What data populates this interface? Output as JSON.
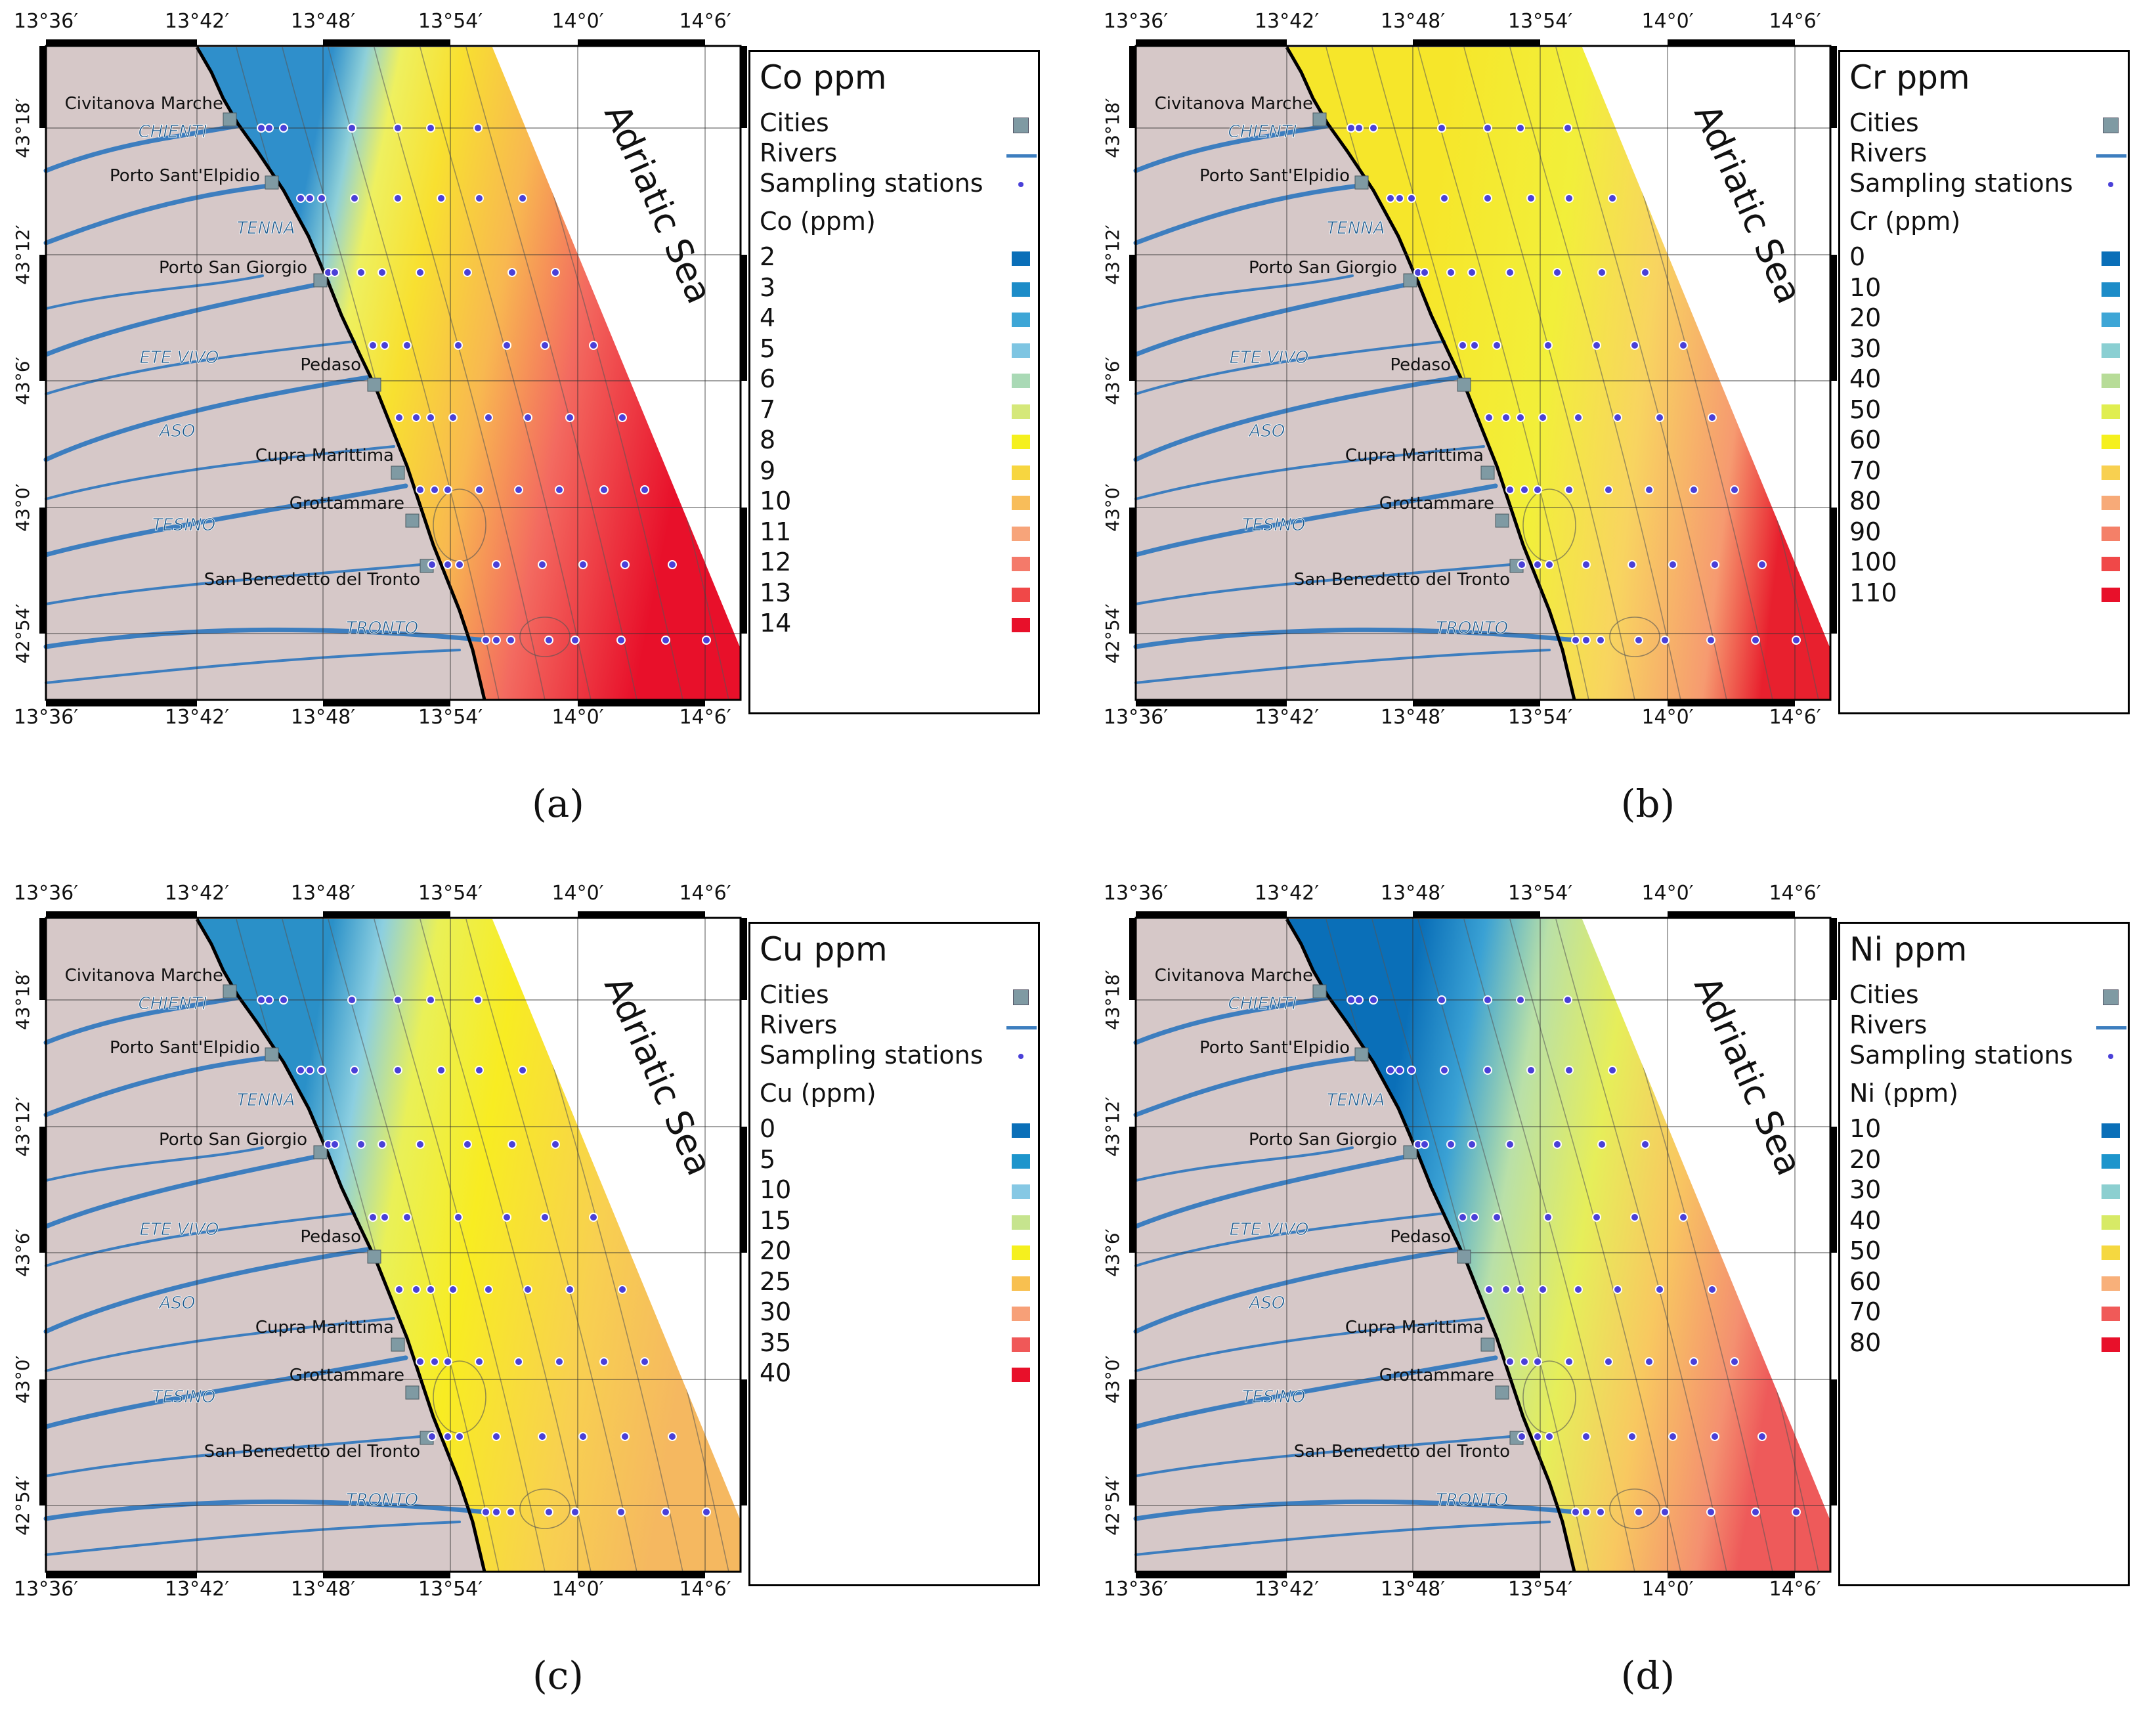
{
  "sea_label": "Adriatic Sea",
  "longitude_ticks": [
    "13°36′",
    "13°42′",
    "13°48′",
    "13°54′",
    "14°0′",
    "14°6′"
  ],
  "latitude_ticks": [
    "43°18′",
    "43°12′",
    "43°6′",
    "43°0′",
    "42°54′"
  ],
  "cities": [
    "Civitanova Marche",
    "Porto Sant'Elpidio",
    "Porto San Giorgio",
    "Pedaso",
    "Cupra Marittima",
    "Grottammare",
    "San Benedetto del Tronto"
  ],
  "rivers": [
    "CHIENTI",
    "TENNA",
    "ETE VIVO",
    "ASO",
    "TESINO",
    "TRONTO"
  ],
  "legend_common": {
    "cities": "Cities",
    "rivers": "Rivers",
    "stations": "Sampling stations"
  },
  "colors": {
    "land": "#d6c8c8",
    "river": "#3d7ebf",
    "city": "#7f9aa3",
    "station": "#4a40d8"
  },
  "panels": [
    {
      "id": "a",
      "caption": "(a)",
      "title": "Co ppm",
      "scale_title": "Co (ppm)",
      "levels": [
        "2",
        "3",
        "4",
        "5",
        "6",
        "7",
        "8",
        "9",
        "10",
        "11",
        "12",
        "13",
        "14"
      ],
      "level_colors": [
        "#0a6fb8",
        "#1d8cc8",
        "#3ea6d6",
        "#7ec5e2",
        "#a9d9b5",
        "#d5e87a",
        "#f5f01e",
        "#f7d640",
        "#f8bd5a",
        "#f7a47a",
        "#f47a6a",
        "#f04848",
        "#e8102a"
      ]
    },
    {
      "id": "b",
      "caption": "(b)",
      "title": "Cr ppm",
      "scale_title": "Cr (ppm)",
      "levels": [
        "0",
        "10",
        "20",
        "30",
        "40",
        "50",
        "60",
        "70",
        "80",
        "90",
        "100",
        "110"
      ],
      "level_colors": [
        "#0a6fb8",
        "#1d8cc8",
        "#3ea6d6",
        "#8acfd2",
        "#b7dc98",
        "#e0ee50",
        "#f5f01e",
        "#f8d050",
        "#f7aa78",
        "#f48068",
        "#f04848",
        "#e8102a"
      ]
    },
    {
      "id": "c",
      "caption": "(c)",
      "title": "Cu ppm",
      "scale_title": "Cu (ppm)",
      "levels": [
        "0",
        "5",
        "10",
        "15",
        "20",
        "25",
        "30",
        "35",
        "40"
      ],
      "level_colors": [
        "#0a6fb8",
        "#1d95cc",
        "#86c8e4",
        "#c6e48e",
        "#f5f01e",
        "#f8c050",
        "#f7a078",
        "#f05858",
        "#e8102a"
      ]
    },
    {
      "id": "d",
      "caption": "(d)",
      "title": "Ni ppm",
      "scale_title": "Ni (ppm)",
      "levels": [
        "10",
        "20",
        "30",
        "40",
        "50",
        "60",
        "70",
        "80"
      ],
      "level_colors": [
        "#0a6fb8",
        "#1d95cc",
        "#8ccfd0",
        "#d7ea66",
        "#f5d840",
        "#f8b07a",
        "#f05a58",
        "#e8102a"
      ]
    }
  ]
}
